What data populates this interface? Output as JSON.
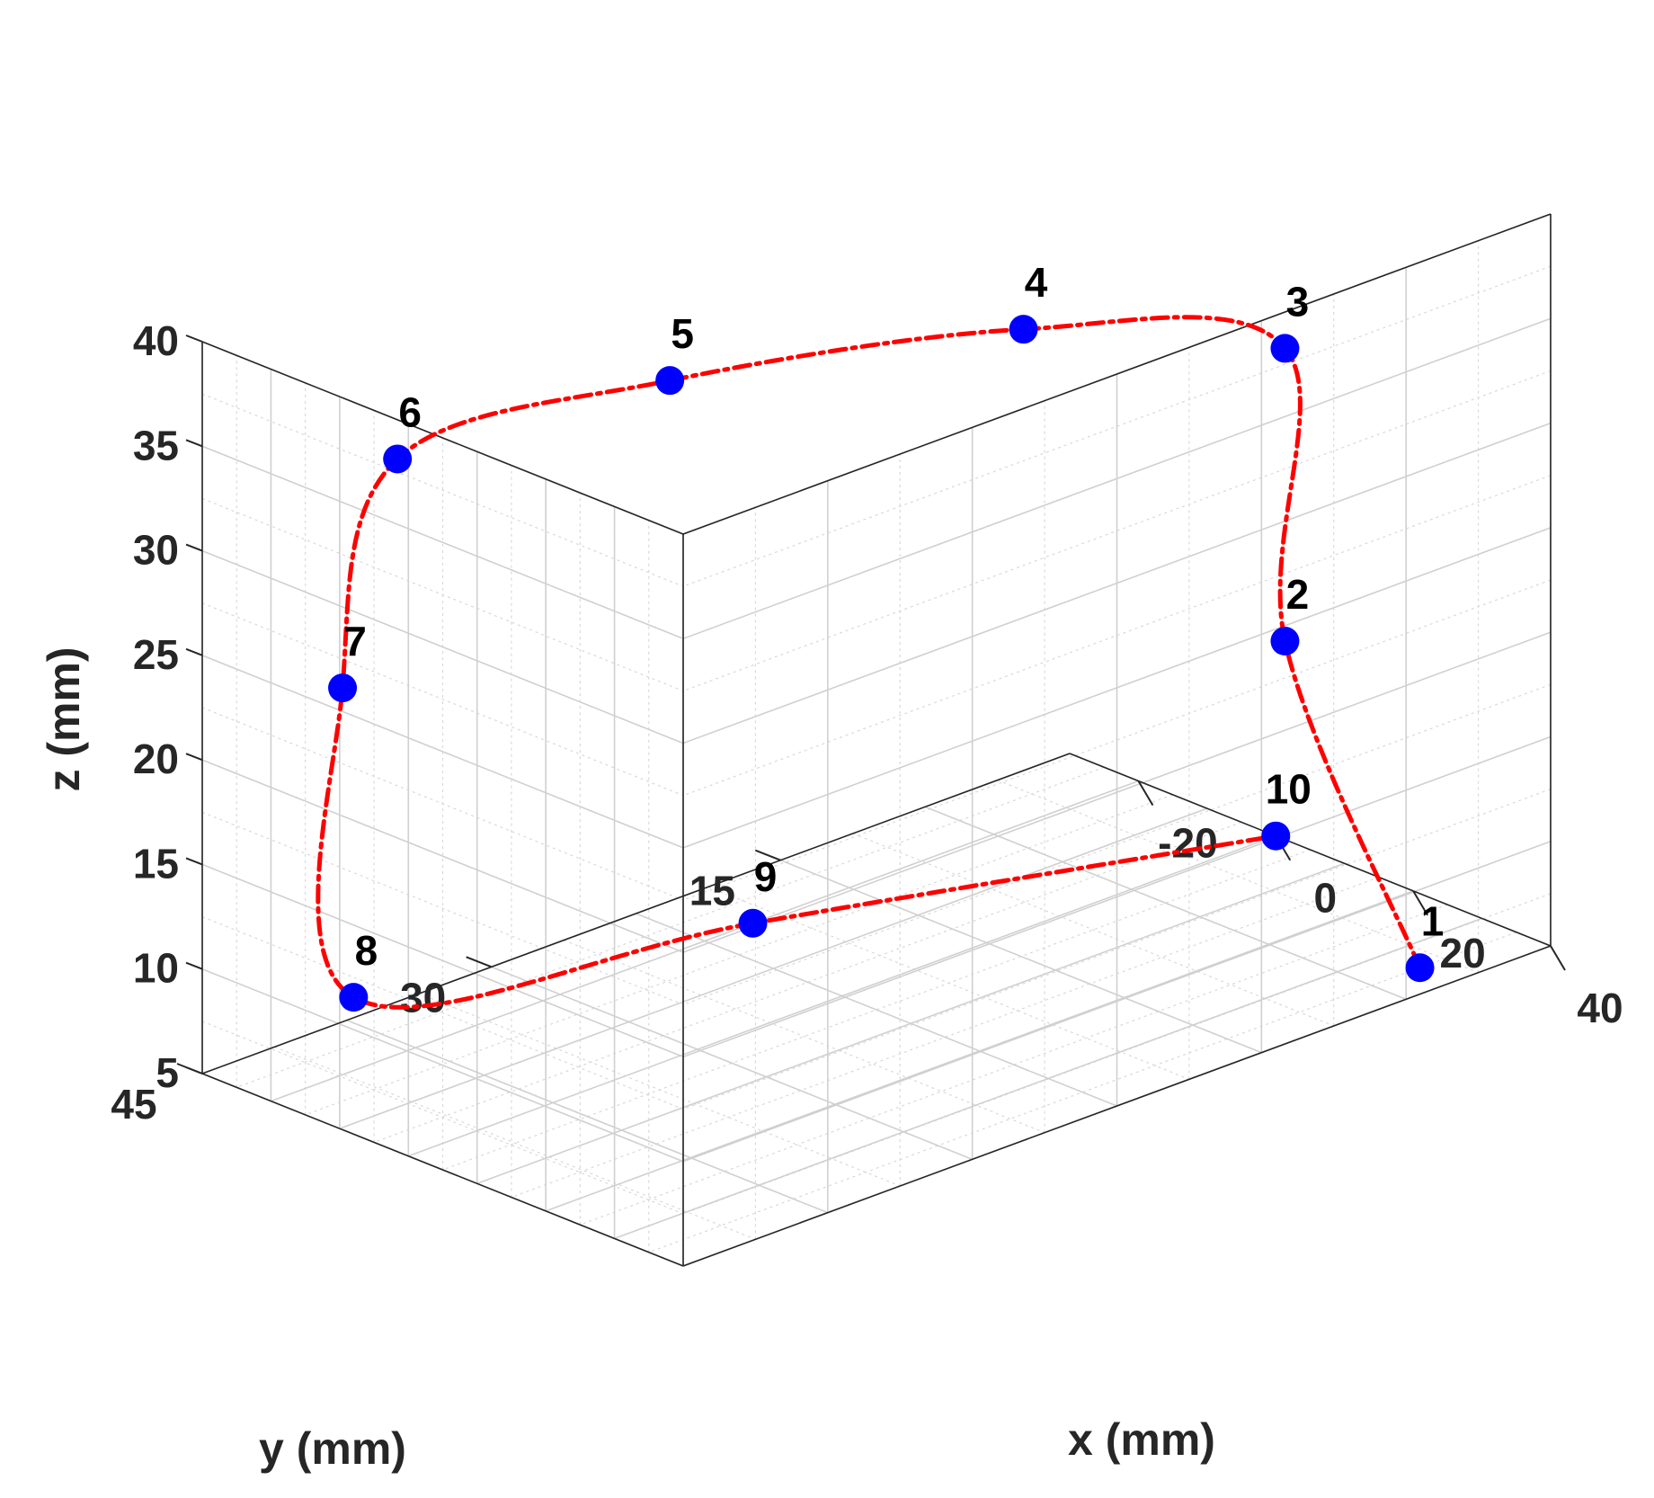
{
  "chart_data": {
    "type": "scatter",
    "projection": "3d",
    "title": "",
    "xlabel": "x (mm)",
    "ylabel": "y (mm)",
    "zlabel": "z (mm)",
    "xlim": [
      -30,
      40
    ],
    "ylim": [
      0,
      45
    ],
    "zlim": [
      5,
      40
    ],
    "x_ticks": [
      -20,
      0,
      20,
      40
    ],
    "y_ticks": [
      15,
      30,
      45
    ],
    "z_ticks": [
      5,
      10,
      15,
      20,
      25,
      30,
      35,
      40
    ],
    "grid": true,
    "minor_grid": true,
    "points": [
      {
        "label": "1",
        "x": 35,
        "y": 5,
        "z": 5
      },
      {
        "label": "2",
        "x": 35,
        "y": 12,
        "z": 23
      },
      {
        "label": "3",
        "x": 35,
        "y": 12,
        "z": 37
      },
      {
        "label": "4",
        "x": 25,
        "y": 22,
        "z": 40
      },
      {
        "label": "5",
        "x": 10,
        "y": 35,
        "z": 40
      },
      {
        "label": "6",
        "x": -10,
        "y": 42,
        "z": 36
      },
      {
        "label": "7",
        "x": -18,
        "y": 42,
        "z": 24
      },
      {
        "label": "8",
        "x": -22,
        "y": 40,
        "z": 8
      },
      {
        "label": "9",
        "x": -20,
        "y": 20,
        "z": 5
      },
      {
        "label": "10",
        "x": 0,
        "y": 0,
        "z": 5
      }
    ],
    "marker_color": "#0000ff",
    "curve_color": "#ff0000",
    "curve_style": "dash-dot"
  }
}
